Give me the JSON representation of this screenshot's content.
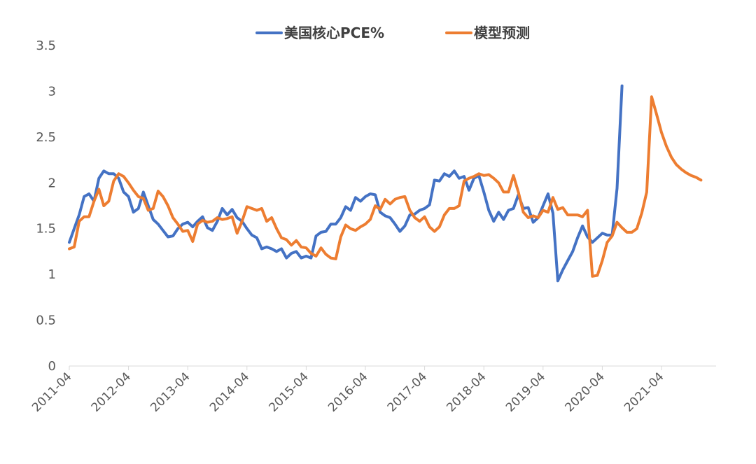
{
  "chart_data": {
    "type": "line",
    "title": "",
    "xlabel": "",
    "ylabel": "",
    "ylim": [
      0,
      3.5
    ],
    "yticks": [
      "0",
      "0.5",
      "1",
      "1.5",
      "2",
      "2.5",
      "3",
      "3.5"
    ],
    "xtick_labels": [
      "2011-04",
      "2012-04",
      "2013-04",
      "2014-04",
      "2015-04",
      "2016-04",
      "2017-04",
      "2018-04",
      "2019-04",
      "2020-04",
      "2021-04"
    ],
    "grid": false,
    "legend_position": "top-center",
    "x_start": "2011-04",
    "series": [
      {
        "name": "美国核心PCE%",
        "color": "#4472C4",
        "values": [
          1.35,
          1.5,
          1.65,
          1.85,
          1.88,
          1.8,
          2.05,
          2.13,
          2.1,
          2.1,
          2.05,
          1.9,
          1.85,
          1.68,
          1.72,
          1.9,
          1.75,
          1.6,
          1.55,
          1.48,
          1.41,
          1.42,
          1.5,
          1.55,
          1.57,
          1.52,
          1.58,
          1.63,
          1.51,
          1.48,
          1.58,
          1.72,
          1.65,
          1.71,
          1.62,
          1.58,
          1.5,
          1.43,
          1.4,
          1.28,
          1.3,
          1.28,
          1.25,
          1.28,
          1.18,
          1.23,
          1.25,
          1.18,
          1.2,
          1.18,
          1.42,
          1.46,
          1.47,
          1.55,
          1.55,
          1.62,
          1.74,
          1.7,
          1.84,
          1.8,
          1.85,
          1.88,
          1.87,
          1.68,
          1.64,
          1.62,
          1.55,
          1.47,
          1.53,
          1.65,
          1.66,
          1.7,
          1.72,
          1.76,
          2.03,
          2.02,
          2.1,
          2.07,
          2.13,
          2.05,
          2.07,
          1.92,
          2.05,
          2.08,
          1.9,
          1.7,
          1.58,
          1.68,
          1.6,
          1.7,
          1.72,
          1.87,
          1.72,
          1.73,
          1.57,
          1.62,
          1.75,
          1.88,
          1.67,
          0.93,
          1.05,
          1.15,
          1.25,
          1.4,
          1.53,
          1.41,
          1.35,
          1.4,
          1.45,
          1.43,
          1.43,
          1.94,
          3.06
        ],
        "values_note": ""
      },
      {
        "name": "模型预测",
        "color": "#ED7D31",
        "values": [
          1.28,
          1.3,
          1.58,
          1.63,
          1.63,
          1.8,
          1.93,
          1.75,
          1.8,
          2.02,
          2.1,
          2.07,
          2.0,
          1.92,
          1.85,
          1.83,
          1.7,
          1.72,
          1.91,
          1.85,
          1.75,
          1.62,
          1.55,
          1.47,
          1.48,
          1.36,
          1.55,
          1.59,
          1.57,
          1.58,
          1.62,
          1.6,
          1.61,
          1.63,
          1.45,
          1.58,
          1.74,
          1.72,
          1.7,
          1.72,
          1.58,
          1.62,
          1.5,
          1.4,
          1.38,
          1.32,
          1.37,
          1.3,
          1.29,
          1.23,
          1.2,
          1.29,
          1.22,
          1.18,
          1.17,
          1.41,
          1.54,
          1.5,
          1.48,
          1.52,
          1.55,
          1.6,
          1.75,
          1.71,
          1.82,
          1.77,
          1.82,
          1.84,
          1.85,
          1.7,
          1.62,
          1.58,
          1.63,
          1.52,
          1.47,
          1.52,
          1.65,
          1.72,
          1.72,
          1.75,
          2.02,
          2.05,
          2.07,
          2.1,
          2.08,
          2.09,
          2.05,
          2.0,
          1.9,
          1.9,
          2.08,
          1.9,
          1.68,
          1.62,
          1.64,
          1.62,
          1.7,
          1.68,
          1.84,
          1.71,
          1.73,
          1.65,
          1.65,
          1.65,
          1.63,
          1.7,
          0.98,
          0.99,
          1.15,
          1.35,
          1.42,
          1.57,
          1.51,
          1.46,
          1.46,
          1.5,
          1.67,
          1.9,
          2.94,
          2.75,
          2.55,
          2.4,
          2.28,
          2.2,
          2.15,
          2.11,
          2.08,
          2.06,
          2.03
        ]
      }
    ]
  }
}
